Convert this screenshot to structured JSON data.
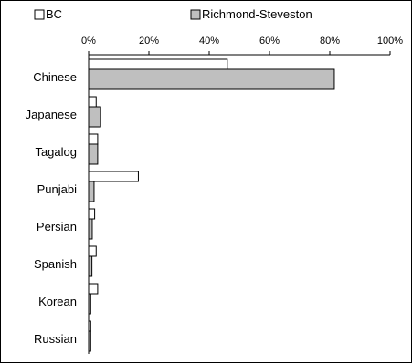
{
  "chart_data": {
    "type": "bar",
    "orientation": "horizontal",
    "categories": [
      "Chinese",
      "Japanese",
      "Tagalog",
      "Punjabi",
      "Persian",
      "Spanish",
      "Korean",
      "Russian"
    ],
    "series": [
      {
        "name": "BC",
        "color": "#ffffff",
        "values": [
          46,
          2.5,
          3,
          16.5,
          2,
          2.5,
          3,
          0.7
        ]
      },
      {
        "name": "Richmond-Steveston",
        "color": "#bfbfbf",
        "values": [
          81.5,
          4,
          3,
          1.8,
          1.2,
          1.1,
          0.7,
          0.7
        ]
      }
    ],
    "xlim": [
      0,
      100
    ],
    "x_ticks": [
      "0%",
      "20%",
      "40%",
      "60%",
      "80%",
      "100%"
    ],
    "legend_position": "top",
    "grid": false
  }
}
